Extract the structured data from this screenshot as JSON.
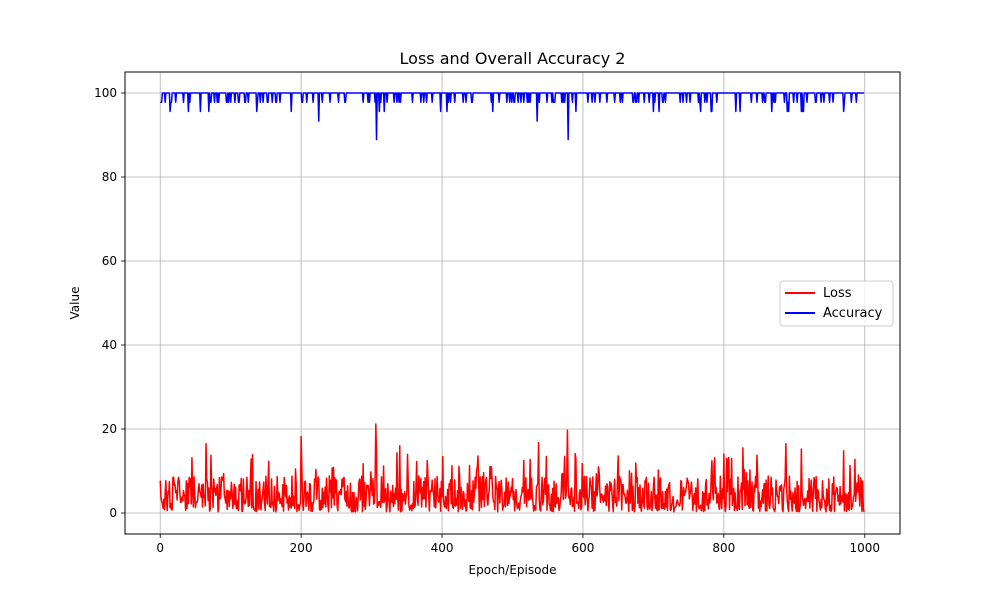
{
  "chart_data": {
    "type": "line",
    "title": "Loss and Overall Accuracy 2",
    "xlabel": "Epoch/Episode",
    "ylabel": "Value",
    "xlim": [
      -50,
      1050
    ],
    "ylim": [
      -5,
      105
    ],
    "xticks": [
      0,
      200,
      400,
      600,
      800,
      1000
    ],
    "yticks": [
      0,
      20,
      40,
      60,
      80,
      100
    ],
    "grid": true,
    "legend_position": "center-right",
    "series": [
      {
        "name": "Loss",
        "color": "#ff0000",
        "summary": {
          "min": 0,
          "max": 21.2,
          "typical": 5
        },
        "peaks": [
          [
            65,
            16.5
          ],
          [
            200,
            18.2
          ],
          [
            306,
            21.2
          ],
          [
            340,
            16
          ],
          [
            537,
            16.8
          ],
          [
            578,
            19.7
          ],
          [
            827,
            15.5
          ],
          [
            888,
            16.5
          ],
          [
            910,
            15.2
          ],
          [
            970,
            14.8
          ]
        ],
        "n_points": 1000
      },
      {
        "name": "Accuracy",
        "color": "#0000ff",
        "summary": {
          "min": 88.9,
          "max": 100,
          "typical": 100
        },
        "dips": [
          [
            14,
            95.6
          ],
          [
            57,
            95.6
          ],
          [
            137,
            95.6
          ],
          [
            186,
            95.6
          ],
          [
            225,
            93.3
          ],
          [
            307,
            88.9
          ],
          [
            318,
            95.6
          ],
          [
            398,
            95.6
          ],
          [
            407,
            95.6
          ],
          [
            535,
            93.3
          ],
          [
            579,
            88.9
          ],
          [
            590,
            95.6
          ],
          [
            700,
            95.6
          ],
          [
            767,
            95.6
          ],
          [
            823,
            95.6
          ],
          [
            868,
            95.6
          ],
          [
            910,
            95.6
          ],
          [
            970,
            95.6
          ]
        ],
        "n_points": 1000
      }
    ]
  }
}
